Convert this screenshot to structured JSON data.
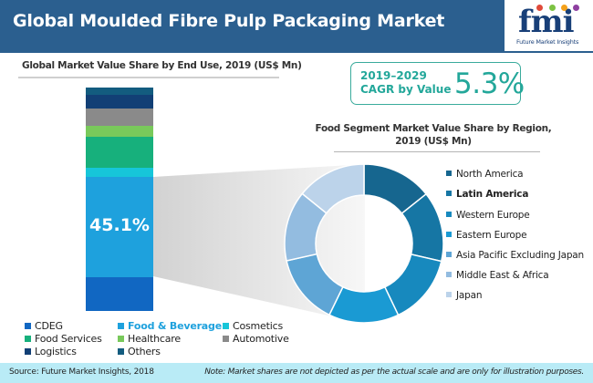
{
  "header": {
    "title": "Global Moulded Fibre Pulp Packaging Market",
    "background_color": "#2b5f8f"
  },
  "logo": {
    "text": "fmi",
    "subtitle": "Future Market Insights",
    "dot_colors": [
      "#e04a3a",
      "#7cc242",
      "#f4a11b",
      "#8e3fa0"
    ]
  },
  "cagr": {
    "years": "2019–2029",
    "label": "CAGR by Value",
    "value": "5.3%",
    "color": "#23a79a"
  },
  "left_chart": {
    "title": "Global Market Value Share by End Use, 2019 (US$ Mn)",
    "highlight_label": "45.1%"
  },
  "right_chart": {
    "title_line1": "Food Segment Market Value Share by Region,",
    "title_line2": "2019 (US$ Mn)"
  },
  "end_use_legend": [
    {
      "label": "CDEG",
      "color": "#1167c2",
      "highlight": false
    },
    {
      "label": "Food & Beverage",
      "color": "#1ea1dd",
      "highlight": true
    },
    {
      "label": "Cosmetics",
      "color": "#16c6d9",
      "highlight": false
    },
    {
      "label": "Food Services",
      "color": "#17b07c",
      "highlight": false
    },
    {
      "label": "Healthcare",
      "color": "#79c95b",
      "highlight": false
    },
    {
      "label": "Automotive",
      "color": "#8a8a8a",
      "highlight": false
    },
    {
      "label": "Logistics",
      "color": "#123f75",
      "highlight": false
    },
    {
      "label": "Others",
      "color": "#135c7f",
      "highlight": false
    }
  ],
  "region_legend": [
    {
      "label": "North America",
      "color": "#16668f",
      "bold": false
    },
    {
      "label": "Latin America",
      "color": "#1676a4",
      "bold": true
    },
    {
      "label": "Western Europe",
      "color": "#1789be",
      "bold": false
    },
    {
      "label": "Eastern Europe",
      "color": "#1a9ad3",
      "bold": false
    },
    {
      "label": "Asia Pacific Excluding Japan",
      "color": "#5ea5d5",
      "bold": false
    },
    {
      "label": "Middle East & Africa",
      "color": "#93bce0",
      "bold": false
    },
    {
      "label": "Japan",
      "color": "#bcd3ea",
      "bold": false
    }
  ],
  "footer": {
    "source": "Source: Future Market Insights, 2018",
    "note": "Note: Market shares are not depicted as per the actual scale and are only for illustration purposes."
  },
  "chart_data": [
    {
      "type": "bar",
      "subtype": "stacked-100",
      "title": "Global Market Value Share by End Use, 2019 (US$ Mn)",
      "categories": [
        "2019"
      ],
      "series": [
        {
          "name": "CDEG",
          "values": [
            15.5
          ]
        },
        {
          "name": "Food & Beverage",
          "values": [
            45.1
          ]
        },
        {
          "name": "Cosmetics",
          "values": [
            4.0
          ]
        },
        {
          "name": "Food Services",
          "values": [
            14.0
          ]
        },
        {
          "name": "Healthcare",
          "values": [
            5.3
          ]
        },
        {
          "name": "Automotive",
          "values": [
            7.8
          ]
        },
        {
          "name": "Logistics",
          "values": [
            6.2
          ]
        },
        {
          "name": "Others",
          "values": [
            2.9
          ]
        }
      ],
      "annotations": [
        "45.1%"
      ],
      "xlabel": "",
      "ylabel": "",
      "grid": false,
      "legend_position": "bottom",
      "note": "Market shares are not depicted as per the actual scale"
    },
    {
      "type": "pie",
      "subtype": "donut",
      "title": "Food Segment Market Value Share by Region, 2019 (US$ Mn)",
      "categories": [
        "North America",
        "Latin America",
        "Western Europe",
        "Eastern Europe",
        "Asia Pacific Excluding Japan",
        "Middle East & Africa",
        "Japan"
      ],
      "values": [
        14.3,
        14.3,
        14.3,
        14.3,
        14.3,
        14.3,
        14.2
      ],
      "legend_position": "right",
      "note": "Slices drawn approximately equal; for illustration only"
    }
  ]
}
